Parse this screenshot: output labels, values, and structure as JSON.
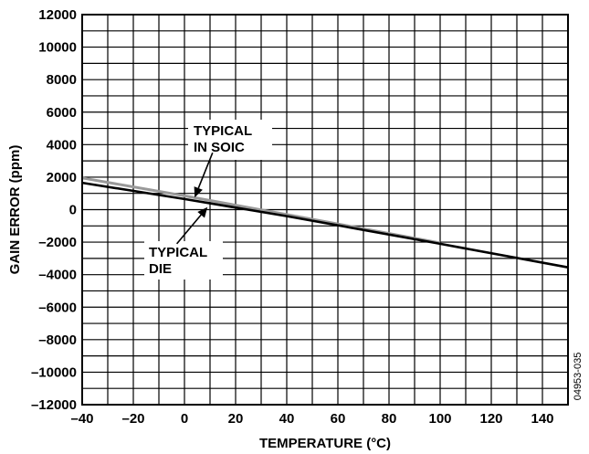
{
  "chart_data": {
    "type": "line",
    "xlabel": "TEMPERATURE (°C)",
    "ylabel": "GAIN ERROR (ppm)",
    "xlim": [
      -40,
      150
    ],
    "ylim": [
      -12000,
      12000
    ],
    "grid": true,
    "x_ticks": [
      "–40",
      "–20",
      "0",
      "20",
      "40",
      "60",
      "80",
      "100",
      "120",
      "140"
    ],
    "x_tick_values": [
      -40,
      -20,
      0,
      20,
      40,
      60,
      80,
      100,
      120,
      140
    ],
    "y_ticks": [
      "12000",
      "10000",
      "8000",
      "6000",
      "4000",
      "2000",
      "0",
      "–2000",
      "–4000",
      "–6000",
      "–8000",
      "–10000",
      "–12000"
    ],
    "y_tick_values": [
      12000,
      10000,
      8000,
      6000,
      4000,
      2000,
      0,
      -2000,
      -4000,
      -6000,
      -8000,
      -10000,
      -12000
    ],
    "series": [
      {
        "color": "#999999",
        "x": [
          -40,
          0,
          40,
          100
        ],
        "y": [
          1950,
          850,
          -300,
          -2050
        ]
      },
      {
        "color": "#000000",
        "x": [
          -40,
          0,
          40,
          100,
          150
        ],
        "y": [
          1650,
          650,
          -400,
          -2100,
          -3550
        ]
      }
    ],
    "annotations": [
      {
        "lines": [
          "TYPICAL",
          "IN SOIC"
        ],
        "target": [
          4,
          750
        ]
      },
      {
        "lines": [
          "TYPICAL",
          "DIE"
        ],
        "target": [
          9,
          150
        ]
      }
    ],
    "figure_id": "04953-035"
  }
}
